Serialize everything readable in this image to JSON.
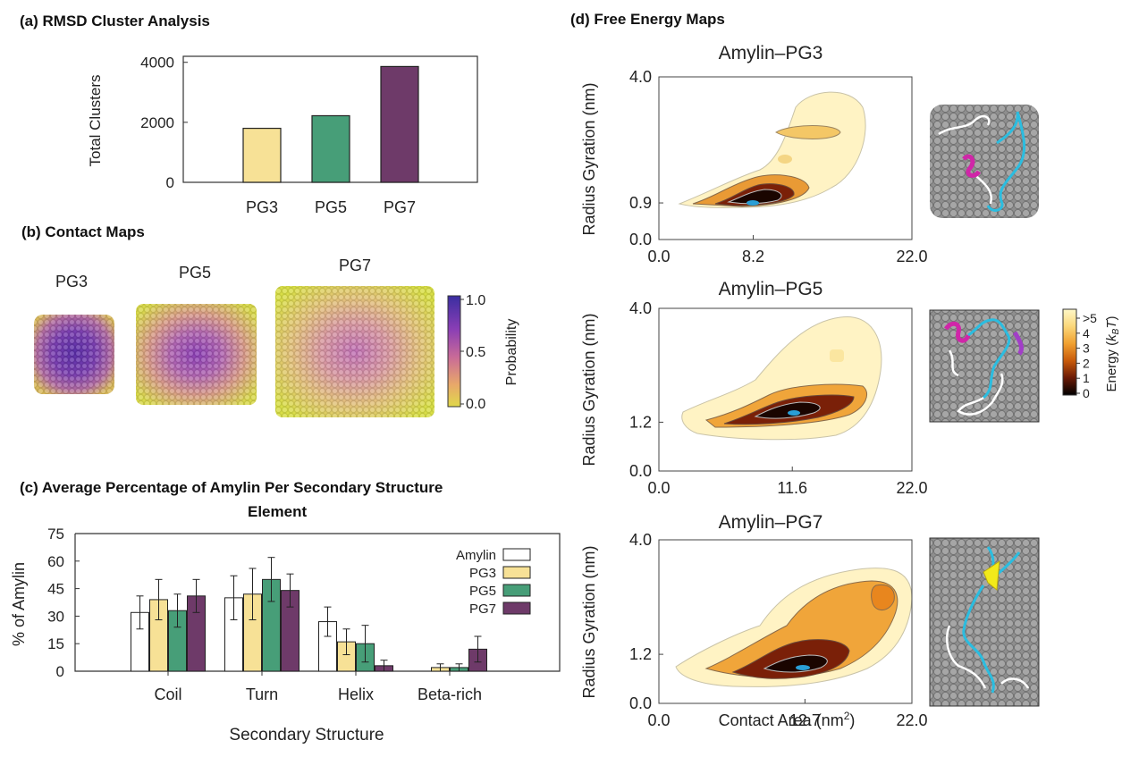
{
  "panels": {
    "a_title": "(a) RMSD Cluster Analysis",
    "b_title": "(b) Contact Maps",
    "c_title_line1": "(c) Average Percentage of Amylin Per Secondary Structure",
    "c_title_line2": "Element",
    "d_title": "(d) Free Energy Maps"
  },
  "colors": {
    "amylin": "#ffffff",
    "pg3": "#f7e196",
    "pg5": "#479e78",
    "pg7": "#6e3a69",
    "ribbon_cyan": "#2bbde0",
    "ribbon_magenta": "#d026a8",
    "ribbon_yellow": "#f2ea1a",
    "surface_gray": "#8d8d8d"
  },
  "contact_maps": {
    "labels": [
      "PG3",
      "PG5",
      "PG7"
    ],
    "colorbar_ticks": [
      "1.0",
      "0.5",
      "0.0"
    ],
    "colorbar_label": "Probability"
  },
  "energy_colorbar": {
    "ticks": [
      ">5",
      "4",
      "3",
      "2",
      "1",
      "0"
    ],
    "label_main": "Energy (",
    "label_k": "k",
    "label_sub": "B",
    "label_T": "T",
    "label_close": ")"
  },
  "chart_data": [
    {
      "type": "bar",
      "id": "rmsd-clusters",
      "title": "",
      "categories": [
        "PG3",
        "PG5",
        "PG7"
      ],
      "values": [
        1800,
        2220,
        3860
      ],
      "ylabel": "Total Clusters",
      "xlabel": "",
      "ylim": [
        0,
        4200
      ],
      "yticks": [
        "0",
        "2000",
        "4000"
      ],
      "grid": false
    },
    {
      "type": "bar",
      "id": "secondary-structure",
      "title": "",
      "categories": [
        "Coil",
        "Turn",
        "Helix",
        "Beta-rich"
      ],
      "series": [
        {
          "name": "Amylin",
          "values": [
            32,
            40,
            27,
            0
          ],
          "errors": [
            9,
            12,
            8,
            0
          ]
        },
        {
          "name": "PG3",
          "values": [
            39,
            42,
            16,
            2
          ],
          "errors": [
            11,
            14,
            7,
            2
          ]
        },
        {
          "name": "PG5",
          "values": [
            33,
            50,
            15,
            2
          ],
          "errors": [
            9,
            12,
            10,
            2
          ]
        },
        {
          "name": "PG7",
          "values": [
            41,
            44,
            3,
            12
          ],
          "errors": [
            9,
            9,
            3,
            7
          ]
        }
      ],
      "xlabel": "Secondary Structure",
      "ylabel": "% of Amylin",
      "ylim": [
        0,
        75
      ],
      "yticks": [
        "0",
        "15",
        "30",
        "45",
        "60",
        "75"
      ],
      "legend": "top-right",
      "grid": false
    },
    {
      "type": "heatmap",
      "id": "fes-pg3",
      "title": "Amylin–PG3",
      "ylabel": "Radius Gyration (nm)",
      "xlabel": "",
      "xticks": [
        "0.0",
        "8.2",
        "22.0"
      ],
      "xtick_values": [
        0.0,
        8.2,
        22.0
      ],
      "yticks": [
        "4.0",
        "0.9",
        "0.0"
      ],
      "ytick_values": [
        4.0,
        0.9,
        0.0
      ],
      "xlim": [
        0,
        22
      ],
      "ylim": [
        0,
        4
      ],
      "minimum": [
        8.2,
        0.9
      ]
    },
    {
      "type": "heatmap",
      "id": "fes-pg5",
      "title": "Amylin–PG5",
      "ylabel": "Radius Gyration (nm)",
      "xlabel": "",
      "xticks": [
        "0.0",
        "11.6",
        "22.0"
      ],
      "xtick_values": [
        0.0,
        11.6,
        22.0
      ],
      "yticks": [
        "4.0",
        "1.2",
        "0.0"
      ],
      "ytick_values": [
        4.0,
        1.2,
        0.0
      ],
      "xlim": [
        0,
        22
      ],
      "ylim": [
        0,
        4
      ],
      "minimum": [
        11.6,
        1.2
      ]
    },
    {
      "type": "heatmap",
      "id": "fes-pg7",
      "title": "Amylin–PG7",
      "ylabel": "Radius Gyration (nm)",
      "xlabel_main": "Contact Area (nm",
      "xlabel_sup": "2",
      "xlabel_close": ")",
      "xticks": [
        "0.0",
        "12.7",
        "22.0"
      ],
      "xtick_values": [
        0.0,
        12.7,
        22.0
      ],
      "yticks": [
        "4.0",
        "1.2",
        "0.0"
      ],
      "ytick_values": [
        4.0,
        1.2,
        0.0
      ],
      "xlim": [
        0,
        22
      ],
      "ylim": [
        0,
        4
      ],
      "minimum": [
        12.7,
        1.2
      ]
    }
  ]
}
